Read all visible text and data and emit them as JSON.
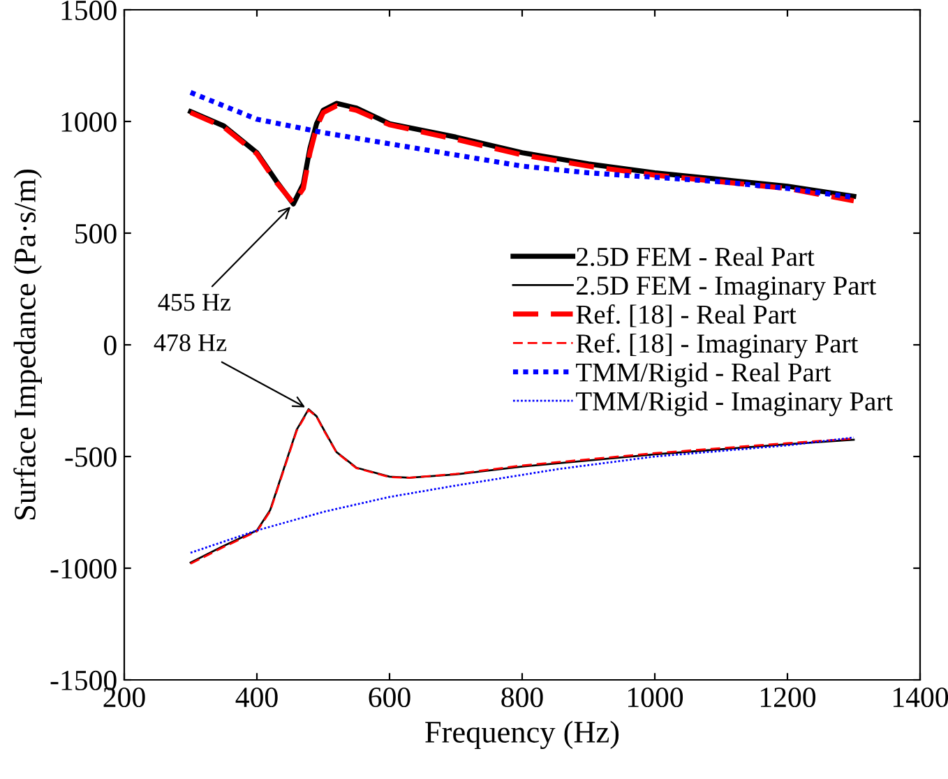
{
  "chart_data": {
    "type": "line",
    "xlabel": "Frequency (Hz)",
    "ylabel": "Surface Impedance (Pa·s/m)",
    "xlim": [
      200,
      1400
    ],
    "ylim": [
      -1500,
      1500
    ],
    "xticks": [
      200,
      400,
      600,
      800,
      1000,
      1200,
      1400
    ],
    "yticks": [
      -1500,
      -1000,
      -500,
      0,
      500,
      1000,
      1500
    ],
    "grid": false,
    "legend": "right",
    "marker": "none",
    "series": [
      {
        "name": "2.5D FEM - Real Part",
        "color": "#000000",
        "line_style": "solid",
        "x": [
          300,
          350,
          400,
          430,
          455,
          470,
          480,
          490,
          500,
          520,
          550,
          600,
          700,
          800,
          900,
          1000,
          1100,
          1200,
          1300
        ],
        "values": [
          1044,
          980,
          860,
          730,
          631,
          720,
          880,
          990,
          1050,
          1081,
          1060,
          990,
          930,
          860,
          810,
          770,
          740,
          710,
          665
        ]
      },
      {
        "name": "2.5D FEM - Imaginary Part",
        "color": "#000000",
        "line_style": "solid",
        "x": [
          300,
          350,
          400,
          420,
          440,
          460,
          478,
          490,
          500,
          520,
          550,
          600,
          630,
          700,
          800,
          1000,
          1200,
          1300
        ],
        "values": [
          -975,
          -900,
          -831,
          -740,
          -560,
          -380,
          -288,
          -320,
          -375,
          -480,
          -550,
          -590,
          -595,
          -580,
          -545,
          -490,
          -445,
          -425
        ]
      },
      {
        "name": "Ref. [18] - Real Part",
        "color": "#ff0000",
        "line_style": "dashed",
        "x": [
          300,
          350,
          400,
          430,
          455,
          470,
          480,
          490,
          500,
          520,
          550,
          600,
          700,
          800,
          900,
          1000,
          1100,
          1200,
          1300
        ],
        "values": [
          1040,
          975,
          855,
          725,
          635,
          700,
          860,
          975,
          1040,
          1070,
          1050,
          985,
          920,
          850,
          800,
          760,
          730,
          700,
          645
        ]
      },
      {
        "name": "Ref. [18] - Imaginary Part",
        "color": "#ff0000",
        "line_style": "dashed",
        "x": [
          300,
          350,
          400,
          420,
          440,
          460,
          478,
          490,
          500,
          520,
          550,
          600,
          630,
          700,
          800,
          1000,
          1200,
          1300
        ],
        "values": [
          -980,
          -905,
          -835,
          -745,
          -565,
          -385,
          -292,
          -322,
          -378,
          -482,
          -552,
          -592,
          -595,
          -578,
          -540,
          -485,
          -440,
          -420
        ]
      },
      {
        "name": "TMM/Rigid - Real Part",
        "color": "#0000ff",
        "line_style": "dotted",
        "x": [
          300,
          400,
          500,
          600,
          700,
          800,
          900,
          1000,
          1100,
          1200,
          1300
        ],
        "values": [
          1130,
          1010,
          950,
          900,
          850,
          800,
          770,
          750,
          730,
          700,
          660
        ]
      },
      {
        "name": "TMM/Rigid - Imaginary Part",
        "color": "#0000ff",
        "line_style": "dotted",
        "x": [
          300,
          400,
          500,
          600,
          700,
          855,
          1000,
          1200,
          1300
        ],
        "values": [
          -931,
          -831,
          -748,
          -681,
          -630,
          -556,
          -500,
          -450,
          -415
        ]
      }
    ],
    "annotations": [
      {
        "text": "455 Hz",
        "x": 455,
        "y": 631
      },
      {
        "text": "478 Hz",
        "x": 478,
        "y": -288
      }
    ]
  }
}
